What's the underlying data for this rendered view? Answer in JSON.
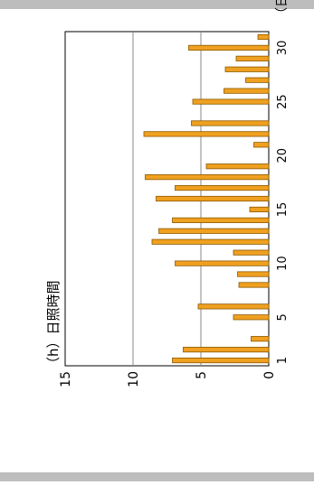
{
  "chart_data": {
    "type": "bar",
    "orientation": "horizontal",
    "ylabel": "（h）日照時間",
    "xlabel": "（日）",
    "x_ticks": [
      1,
      5,
      10,
      15,
      20,
      25,
      30
    ],
    "y_ticks": [
      0,
      5,
      10,
      15
    ],
    "ylim": [
      0,
      15
    ],
    "xlim": [
      0.5,
      31.5
    ],
    "grid": "y-major",
    "colors": {
      "bar": "#F0A020",
      "bar_edge": "#8A5A00",
      "grid": "#888888",
      "frame_bar": "#BDBDBD"
    },
    "categories": [
      1,
      2,
      3,
      4,
      5,
      6,
      7,
      8,
      9,
      10,
      11,
      12,
      13,
      14,
      15,
      16,
      17,
      18,
      19,
      20,
      21,
      22,
      23,
      24,
      25,
      26,
      27,
      28,
      29,
      30,
      31
    ],
    "values": [
      7.1,
      6.3,
      1.3,
      0,
      2.6,
      5.2,
      0,
      2.2,
      2.3,
      6.9,
      2.6,
      8.6,
      8.1,
      7.1,
      1.4,
      8.3,
      6.9,
      9.1,
      4.6,
      0,
      1.1,
      9.2,
      5.7,
      0,
      5.6,
      3.3,
      1.7,
      3.2,
      2.4,
      5.9,
      0.8
    ]
  }
}
